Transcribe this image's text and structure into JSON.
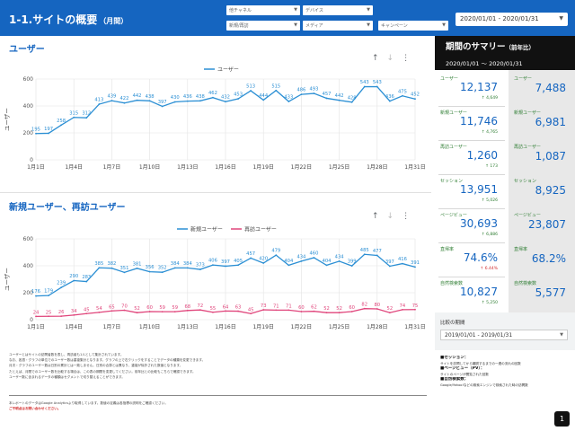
{
  "header": {
    "title": "1-1.サイトの概要",
    "title_sub": "（月間）",
    "filters": {
      "channel": "他チャネル",
      "device": "デバイス",
      "new_returning": "新規/再訪",
      "media": "メディア",
      "campaign": "キャンペーン"
    },
    "date_range": "2020/01/01 - 2020/01/31"
  },
  "users_chart": {
    "title": "ユーザー",
    "legend": "ユーザー",
    "ylabel": "ユーザー",
    "color": "#2b8fd4"
  },
  "new_returning_chart": {
    "title": "新規ユーザー、再訪ユーザー",
    "legend_new": "新規ユーザー",
    "legend_returning": "再訪ユーザー",
    "ylabel": "ユーザー",
    "color_new": "#2b8fd4",
    "color_returning": "#e0457b"
  },
  "chart_data": [
    {
      "type": "line",
      "title": "ユーザー",
      "ylabel": "ユーザー",
      "xlabel": "",
      "x": [
        "1月1日",
        "1月2日",
        "1月3日",
        "1月4日",
        "1月5日",
        "1月6日",
        "1月7日",
        "1月8日",
        "1月9日",
        "1月10日",
        "1月11日",
        "1月12日",
        "1月13日",
        "1月14日",
        "1月15日",
        "1月16日",
        "1月17日",
        "1月18日",
        "1月19日",
        "1月20日",
        "1月21日",
        "1月22日",
        "1月23日",
        "1月24日",
        "1月25日",
        "1月26日",
        "1月27日",
        "1月28日",
        "1月29日",
        "1月30日",
        "1月31日"
      ],
      "x_ticks": [
        "1月1日",
        "1月4日",
        "1月7日",
        "1月10日",
        "1月13日",
        "1月16日",
        "1月19日",
        "1月22日",
        "1月25日",
        "1月28日",
        "1月31日"
      ],
      "series": [
        {
          "name": "ユーザー",
          "values": [
            195,
            197,
            258,
            315,
            312,
            413,
            439,
            422,
            442,
            438,
            397,
            430,
            436,
            438,
            462,
            432,
            453,
            513,
            444,
            515,
            433,
            486,
            493,
            457,
            442,
            428,
            543,
            543,
            436,
            475,
            452
          ]
        }
      ],
      "ylim": [
        0,
        600
      ],
      "yticks": [
        0,
        200,
        400,
        600
      ],
      "grid": true,
      "legend": "top-center"
    },
    {
      "type": "line",
      "title": "新規ユーザー、再訪ユーザー",
      "ylabel": "ユーザー",
      "xlabel": "",
      "x": [
        "1月1日",
        "1月2日",
        "1月3日",
        "1月4日",
        "1月5日",
        "1月6日",
        "1月7日",
        "1月8日",
        "1月9日",
        "1月10日",
        "1月11日",
        "1月12日",
        "1月13日",
        "1月14日",
        "1月15日",
        "1月16日",
        "1月17日",
        "1月18日",
        "1月19日",
        "1月20日",
        "1月21日",
        "1月22日",
        "1月23日",
        "1月24日",
        "1月25日",
        "1月26日",
        "1月27日",
        "1月28日",
        "1月29日",
        "1月30日",
        "1月31日"
      ],
      "x_ticks": [
        "1月1日",
        "1月4日",
        "1月7日",
        "1月10日",
        "1月13日",
        "1月16日",
        "1月19日",
        "1月22日",
        "1月25日",
        "1月28日",
        "1月31日"
      ],
      "series": [
        {
          "name": "新規ユーザー",
          "values": [
            176,
            179,
            239,
            290,
            283,
            385,
            382,
            351,
            381,
            356,
            352,
            384,
            384,
            373,
            406,
            397,
            405,
            457,
            420,
            479,
            404,
            434,
            460,
            404,
            434,
            399,
            485,
            477,
            397,
            416,
            391
          ]
        },
        {
          "name": "再訪ユーザー",
          "values": [
            24,
            25,
            26,
            34,
            45,
            54,
            65,
            70,
            52,
            60,
            59,
            59,
            68,
            72,
            55,
            64,
            63,
            45,
            73,
            71,
            71,
            60,
            62,
            52,
            52,
            60,
            82,
            80,
            52,
            74,
            75
          ]
        }
      ],
      "ylim": [
        0,
        600
      ],
      "yticks": [
        0,
        200,
        400,
        600
      ],
      "grid": true,
      "legend": "top-center"
    }
  ],
  "summary": {
    "title": "期間のサマリー",
    "title_sub": "（前年比）",
    "range_start": "2020/01/01",
    "range_sep": "〜",
    "range_end": "2020/01/31",
    "current": [
      {
        "label": "ユーザー",
        "value": "12,137",
        "change": "↑ 4,649",
        "good": true
      },
      {
        "label": "新規ユーザー",
        "value": "11,746",
        "change": "↑ 4,765",
        "good": true
      },
      {
        "label": "再訪ユーザー",
        "value": "1,260",
        "change": "↑ 173",
        "good": true
      },
      {
        "label": "セッション",
        "value": "13,951",
        "change": "↑ 5,026",
        "good": true
      },
      {
        "label": "ページビュー",
        "value": "30,693",
        "change": "↑ 6,886",
        "good": true
      },
      {
        "label": "直帰率",
        "value": "74.6%",
        "change": "↑ 6.44%",
        "good": false
      },
      {
        "label": "自然検索数",
        "value": "10,827",
        "change": "↑ 5,250",
        "good": true
      }
    ],
    "previous": [
      {
        "label": "ユーザー",
        "value": "7,488"
      },
      {
        "label": "新規ユーザー",
        "value": "6,981"
      },
      {
        "label": "再訪ユーザー",
        "value": "1,087"
      },
      {
        "label": "セッション",
        "value": "8,925"
      },
      {
        "label": "ページビュー",
        "value": "23,807"
      },
      {
        "label": "直帰率",
        "value": "68.2%"
      },
      {
        "label": "自然検索数",
        "value": "5,577"
      }
    ]
  },
  "compare": {
    "label": "比較の期間",
    "value": "2019/01/01 - 2019/01/31"
  },
  "notes": {
    "lines": [
      "ユーザーとはサイトの訪問者数を表し、再訪者も1人として集計されています。",
      "なお、各週・グラフの単位でのユーザー数は重複集計となります。グラフの上で右クリックをすることでデータの種類を変更できます。",
      "月次・グラフのユーザー数は日別の累計とは一致しません。日別の合算とは異なり、重複が除外された数値となります。",
      "たとえば、月間でのユーザー数を比較する場合は、この表の期間を変更してください。前年比との比較もこちらで確認できます。",
      "ユーザー数に含まれるデータの種類はセグメントで切り替えることができます。"
    ],
    "red_line": "ご不明点はお問い合わせください。",
    "red_line_after": "本レポートのデータはGoogle Analyticsより取得しています。数値の定義は各指標の説明をご確認ください。"
  },
  "side_notes": {
    "session_title": "■セッション：",
    "session_text": "サイトを訪問してから離脱するまでの一連の流れの回数",
    "pageview_title": "■ページビュー（PV）：",
    "pageview_text": "サイトのページが閲覧された回数",
    "organic_title": "■自然検索数：",
    "organic_text": "Google/Yahoo!などの検索エンジンで検索された時の訪問数"
  },
  "page_number": "1",
  "icons": {
    "sort_up": "arrow-up-icon",
    "sort_down": "arrow-down-icon",
    "menu": "more-vert-icon",
    "dropdown": "caret-down-icon"
  }
}
